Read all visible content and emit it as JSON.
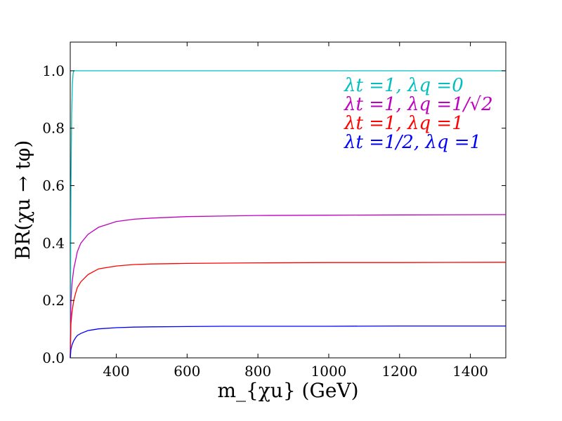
{
  "chart_data": {
    "type": "line",
    "xlim": [
      270,
      1500
    ],
    "ylim": [
      0.0,
      1.1
    ],
    "x_ticks": [
      400,
      600,
      800,
      1000,
      1200,
      1400
    ],
    "x_tick_labels": [
      "400",
      "600",
      "800",
      "1000",
      "1200",
      "1400"
    ],
    "y_ticks": [
      0.0,
      0.2,
      0.4,
      0.6,
      0.8,
      1.0
    ],
    "y_tick_labels": [
      "0.0",
      "0.2",
      "0.4",
      "0.6",
      "0.8",
      "1.0"
    ],
    "xlabel": "m_{χu} (GeV)",
    "ylabel": "BR(χu → tφ)",
    "legend_position": "top-right",
    "series": [
      {
        "name": "λt =1, λq =0",
        "color": "#00bfbf",
        "x": [
          270,
          272,
          274,
          276,
          278,
          280,
          300,
          400,
          600,
          800,
          1000,
          1200,
          1500
        ],
        "y": [
          0.0,
          0.6,
          0.85,
          0.95,
          0.99,
          1.0,
          1.0,
          1.0,
          1.0,
          1.0,
          1.0,
          1.0,
          1.0
        ]
      },
      {
        "name": "λt =1, λq =1/√2",
        "color": "#bf00bf",
        "x": [
          270,
          272,
          275,
          280,
          285,
          290,
          300,
          320,
          350,
          400,
          450,
          500,
          600,
          700,
          800,
          1000,
          1200,
          1500
        ],
        "y": [
          0.0,
          0.2,
          0.26,
          0.31,
          0.34,
          0.37,
          0.4,
          0.43,
          0.455,
          0.475,
          0.483,
          0.487,
          0.492,
          0.494,
          0.496,
          0.497,
          0.498,
          0.499
        ]
      },
      {
        "name": "λt =1, λq =1",
        "color": "#ff0000",
        "x": [
          270,
          272,
          275,
          280,
          285,
          290,
          300,
          320,
          350,
          400,
          450,
          500,
          600,
          700,
          800,
          1000,
          1200,
          1500
        ],
        "y": [
          0.0,
          0.12,
          0.16,
          0.2,
          0.225,
          0.245,
          0.265,
          0.29,
          0.31,
          0.32,
          0.325,
          0.327,
          0.329,
          0.33,
          0.331,
          0.332,
          0.332,
          0.333
        ]
      },
      {
        "name": "λt =1/2, λq =1",
        "color": "#0000ff",
        "x": [
          270,
          272,
          275,
          280,
          285,
          290,
          300,
          320,
          350,
          400,
          450,
          500,
          600,
          700,
          800,
          1000,
          1200,
          1500
        ],
        "y": [
          0.0,
          0.03,
          0.045,
          0.06,
          0.07,
          0.078,
          0.085,
          0.095,
          0.101,
          0.105,
          0.107,
          0.108,
          0.109,
          0.11,
          0.11,
          0.11,
          0.111,
          0.111
        ]
      }
    ]
  }
}
